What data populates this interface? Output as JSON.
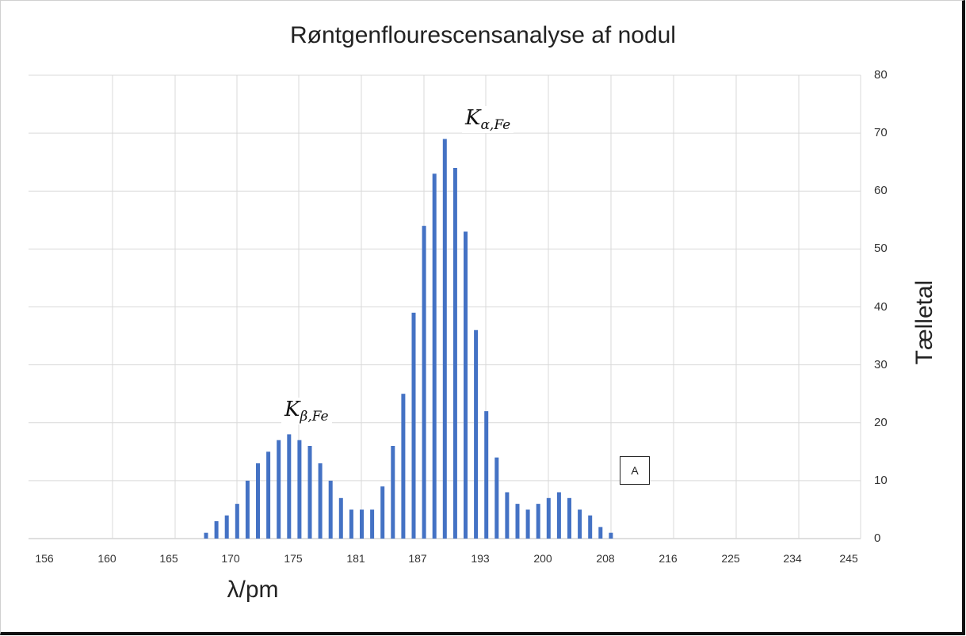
{
  "chart_data": {
    "type": "bar",
    "title": "Røntgenflourescensanalyse af nodul",
    "xlabel": "λ/pm",
    "ylabel": "Tælletal",
    "ylim": [
      0,
      80
    ],
    "yticks": [
      0,
      10,
      20,
      30,
      40,
      50,
      60,
      70,
      80
    ],
    "y_axis_position": "right",
    "grid": true,
    "xtick_labels": [
      "156",
      "160",
      "165",
      "170",
      "175",
      "181",
      "187",
      "193",
      "200",
      "208",
      "216",
      "225",
      "234",
      "245"
    ],
    "series": [
      {
        "name": "Tælletal",
        "color": "#4472C4",
        "values": [
          1,
          3,
          4,
          6,
          10,
          13,
          15,
          17,
          18,
          17,
          16,
          13,
          10,
          7,
          5,
          5,
          5,
          9,
          16,
          25,
          39,
          54,
          63,
          69,
          64,
          53,
          36,
          22,
          14,
          8,
          6,
          5,
          6,
          7,
          8,
          7,
          5,
          4,
          2,
          1
        ]
      }
    ],
    "annotations": [
      {
        "text": "K_{β,Fe}",
        "near_value": 18
      },
      {
        "text": "K_{α,Fe}",
        "near_value": 69
      },
      {
        "text": "A",
        "boxed": true,
        "near_value": 8
      }
    ]
  },
  "title": "Røntgenflourescensanalyse af nodul",
  "axes": {
    "x_title": "λ/pm",
    "y_title": "Tælletal",
    "y_ticks": [
      "0",
      "10",
      "20",
      "30",
      "40",
      "50",
      "60",
      "70",
      "80"
    ],
    "x_ticks": [
      "156",
      "160",
      "165",
      "170",
      "175",
      "181",
      "187",
      "193",
      "200",
      "208",
      "216",
      "225",
      "234",
      "245"
    ]
  },
  "annotations": {
    "kbeta_main": "K",
    "kbeta_sub": "β,Fe",
    "kalpha_main": "K",
    "kalpha_sub": "α,Fe",
    "box_label": "A"
  }
}
